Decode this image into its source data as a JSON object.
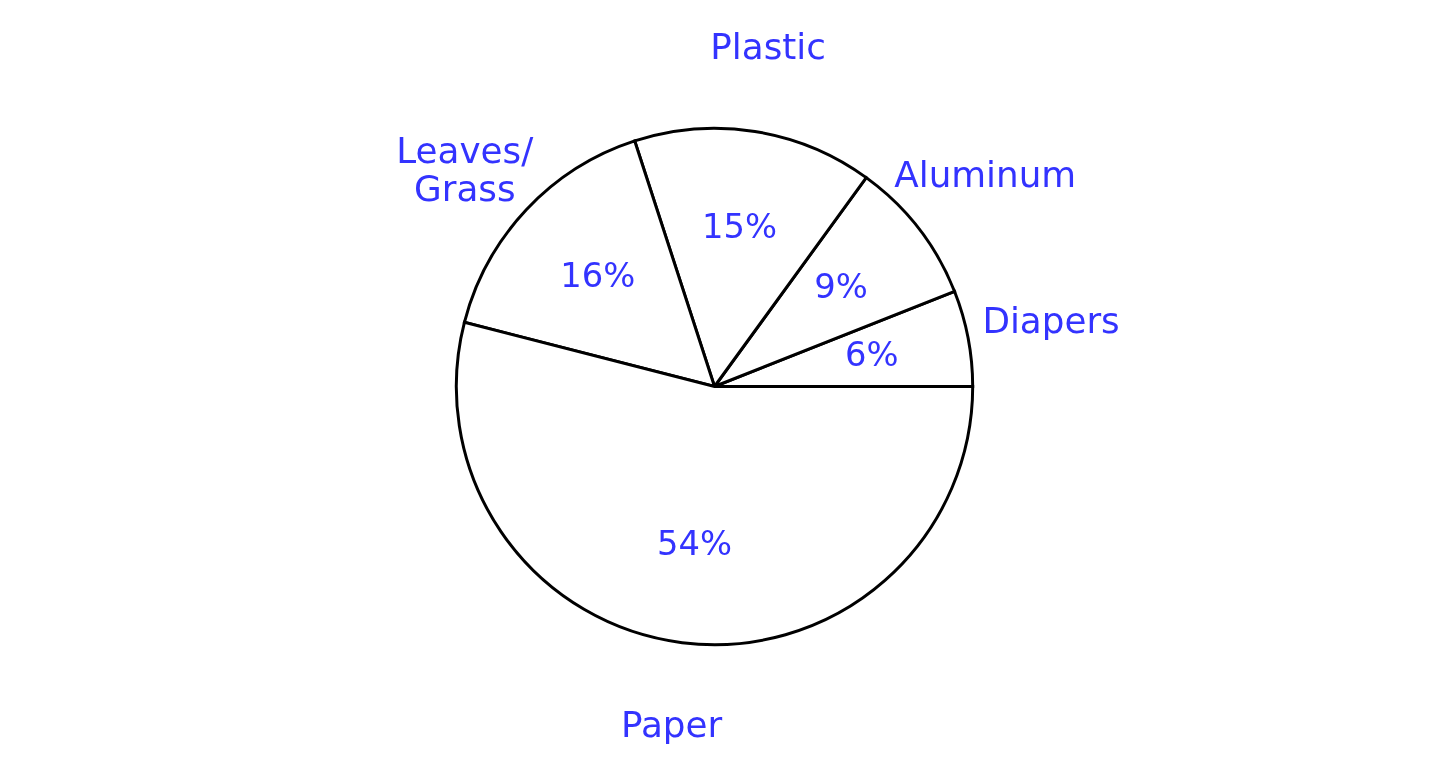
{
  "chart_data": {
    "type": "pie",
    "categories": [
      "Diapers",
      "Aluminum",
      "Plastic",
      "Leaves/\nGrass",
      "Paper"
    ],
    "values": [
      6,
      9,
      15,
      16,
      54
    ],
    "value_labels": [
      "6%",
      "9%",
      "15%",
      "16%",
      "54%"
    ],
    "colors": [
      "#ffffff",
      "#ffffff",
      "#ffffff",
      "#ffffff",
      "#ffffff"
    ]
  }
}
